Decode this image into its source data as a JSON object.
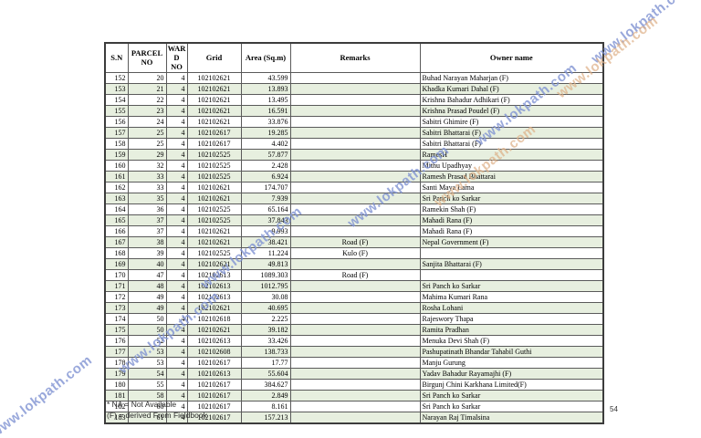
{
  "page": {
    "number": "54"
  },
  "watermark": {
    "text": "www.lokpath.com",
    "blue_color": "#8092d2",
    "orange_color": "#deb088"
  },
  "footnotes": {
    "na": "* NA = Not Available",
    "f": "(F) = derived From Fieldbook"
  },
  "table": {
    "headers": [
      "S.N",
      "PARCEL NO",
      "WAR D NO",
      "Grid",
      "Area (Sq.m)",
      "Remarks",
      "Owner name"
    ],
    "rows": [
      [
        "152",
        "20",
        "4",
        "102102621",
        "43.599",
        "",
        "Buhad Narayan Maharjan (F)"
      ],
      [
        "153",
        "21",
        "4",
        "102102621",
        "13.893",
        "",
        "Khadka Kumari Dahal (F)"
      ],
      [
        "154",
        "22",
        "4",
        "102102621",
        "13.495",
        "",
        "Krishna Bahadur Adhikari (F)"
      ],
      [
        "155",
        "23",
        "4",
        "102102621",
        "16.591",
        "",
        "Krishna Prasad Poudel (F)"
      ],
      [
        "156",
        "24",
        "4",
        "102102621",
        "33.876",
        "",
        "Sabitri Ghimire (F)"
      ],
      [
        "157",
        "25",
        "4",
        "102102617",
        "19.285",
        "",
        "Sabitri Bhattarai (F)"
      ],
      [
        "158",
        "25",
        "4",
        "102102617",
        "4.402",
        "",
        "Sabitri Bhattarai (F)"
      ],
      [
        "159",
        "29",
        "4",
        "102102525",
        "57.877",
        "",
        "RamesH"
      ],
      [
        "160",
        "32",
        "4",
        "102102525",
        "2.428",
        "",
        "Mithu Upadhyay"
      ],
      [
        "161",
        "33",
        "4",
        "102102525",
        "6.924",
        "",
        "Ramesh Prasad Bhattarai"
      ],
      [
        "162",
        "33",
        "4",
        "102102621",
        "174.707",
        "",
        "Santi Maya Lama"
      ],
      [
        "163",
        "35",
        "4",
        "102102621",
        "7.939",
        "",
        "Sri Panch ko Sarkar"
      ],
      [
        "164",
        "36",
        "4",
        "102102525",
        "65.164",
        "",
        "Ramekin Shah (F)"
      ],
      [
        "165",
        "37",
        "4",
        "102102525",
        "37.843",
        "",
        "Mahadi Rana (F)"
      ],
      [
        "166",
        "37",
        "4",
        "102102621",
        "9.993",
        "",
        "Mahadi Rana (F)"
      ],
      [
        "167",
        "38",
        "4",
        "102102621",
        "38.421",
        "Road (F)",
        "Nepal Government (F)"
      ],
      [
        "168",
        "39",
        "4",
        "102102525",
        "11.224",
        "Kulo (F)",
        ""
      ],
      [
        "169",
        "40",
        "4",
        "102102621",
        "49.813",
        "",
        "Sanjita Bhattarai (F)"
      ],
      [
        "170",
        "47",
        "4",
        "102102613",
        "1089.303",
        "Road (F)",
        ""
      ],
      [
        "171",
        "48",
        "4",
        "102102613",
        "1012.795",
        "",
        "Sri Panch ko Sarkar"
      ],
      [
        "172",
        "49",
        "4",
        "102102613",
        "30.08",
        "",
        "Mahima Kumari Rana"
      ],
      [
        "173",
        "49",
        "4",
        "102102621",
        "40.695",
        "",
        "Rosha Lohani"
      ],
      [
        "174",
        "50",
        "4",
        "102102618",
        "2.225",
        "",
        "Rajeswory Thapa"
      ],
      [
        "175",
        "50",
        "4",
        "102102621",
        "39.182",
        "",
        "Ramita Pradhan"
      ],
      [
        "176",
        "52",
        "4",
        "102102613",
        "33.426",
        "",
        "Menuka Devi Shah (F)"
      ],
      [
        "177",
        "53",
        "4",
        "102102608",
        "138.733",
        "",
        "Pashupatinath Bhandar Tahabil Guthi"
      ],
      [
        "178",
        "53",
        "4",
        "102102617",
        "17.77",
        "",
        "Manju Gurung"
      ],
      [
        "179",
        "54",
        "4",
        "102102613",
        "55.604",
        "",
        "Yadav Bahadur Rayamajhi (F)"
      ],
      [
        "180",
        "55",
        "4",
        "102102617",
        "384.627",
        "",
        "Birgunj Chini Karkhana Limited(F)"
      ],
      [
        "181",
        "58",
        "4",
        "102102617",
        "2.849",
        "",
        "Sri Panch ko Sarkar"
      ],
      [
        "182",
        "60",
        "4",
        "102102617",
        "8.161",
        "",
        "Sri Panch ko Sarkar"
      ],
      [
        "183",
        "61",
        "4",
        "102102617",
        "157.213",
        "",
        "Narayan Raj Timalsina"
      ]
    ]
  }
}
